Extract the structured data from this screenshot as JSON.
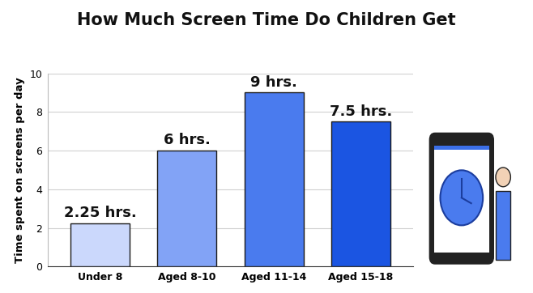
{
  "chart_data": {
    "type": "bar",
    "title": "How Much Screen Time Do Children Get",
    "y_label": "Time spent on screens per day",
    "categories": [
      "Under 8",
      "Aged 8-10",
      "Aged 11-14",
      "Aged 15-18"
    ],
    "values": [
      2.25,
      6,
      9,
      7.5
    ],
    "value_labels": [
      "2.25 hrs.",
      "6 hrs.",
      "9 hrs.",
      "7.5 hrs."
    ],
    "colors": [
      "#cbd8fc",
      "#82a3f6",
      "#4a7bee",
      "#1b55e2"
    ],
    "ylim": [
      0,
      10
    ],
    "yticks": [
      0,
      2,
      4,
      6,
      8,
      10
    ],
    "grid": true,
    "data_labels": true
  }
}
